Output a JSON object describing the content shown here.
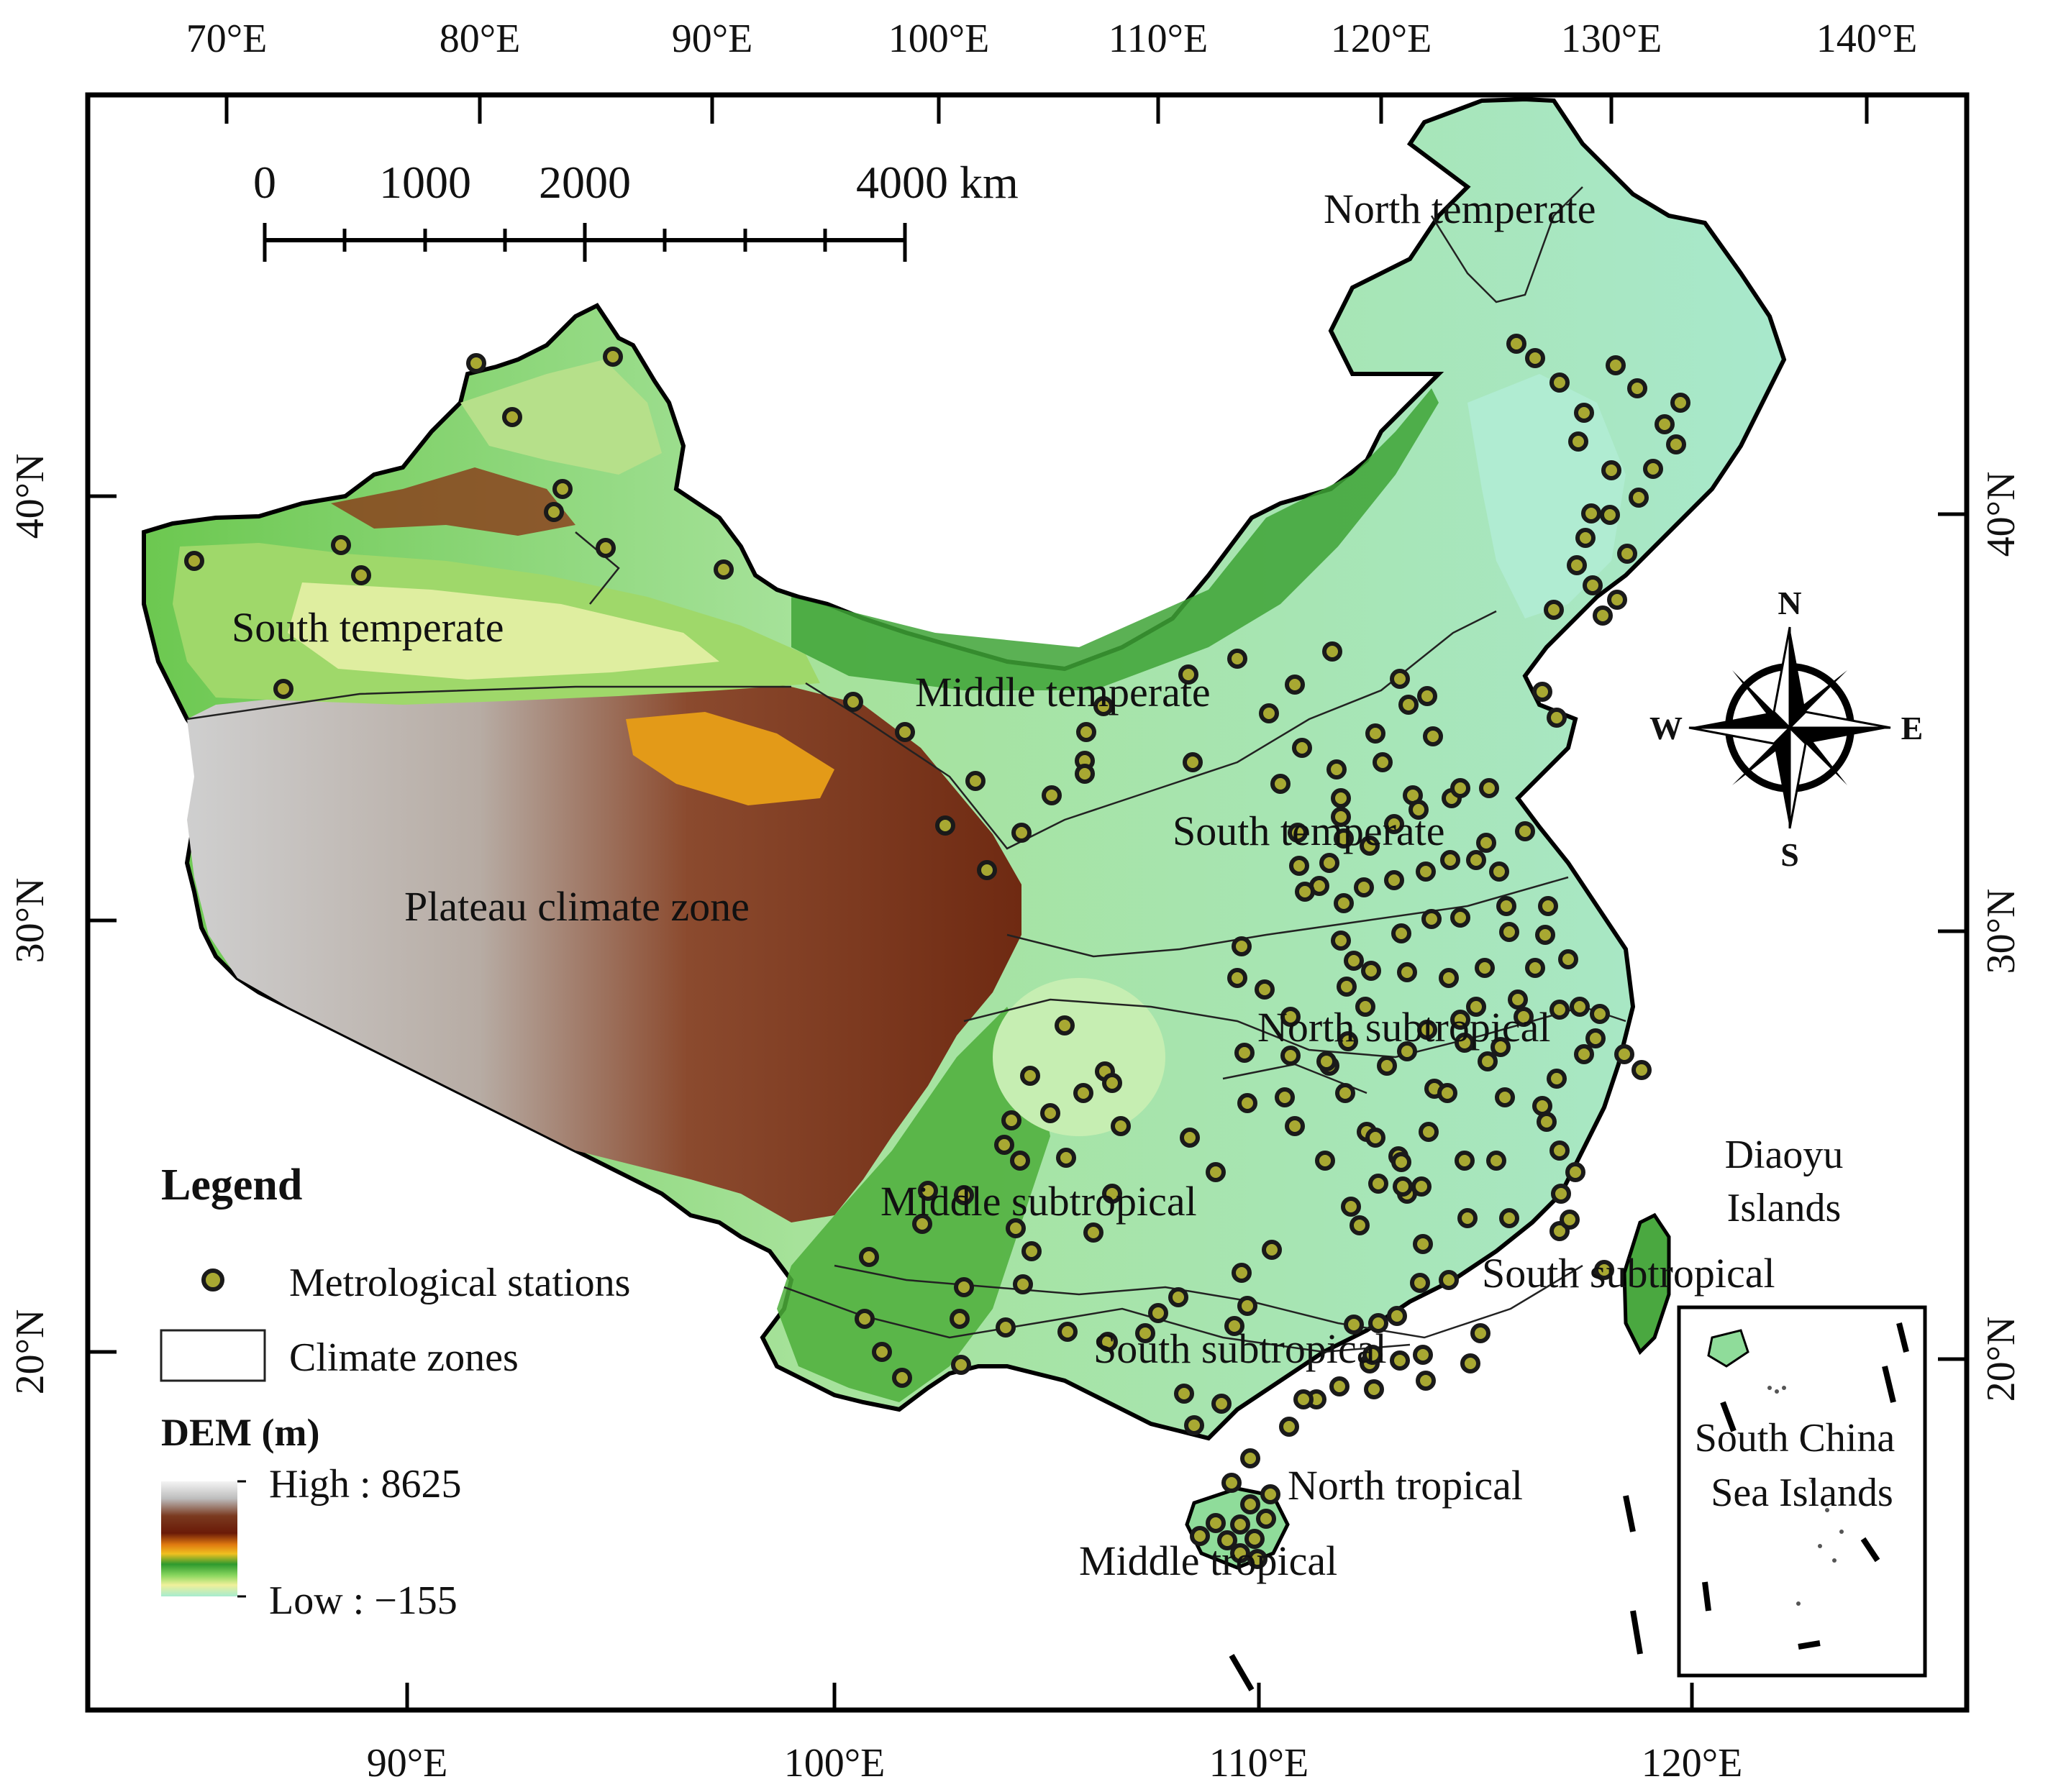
{
  "map": {
    "top_longitudes": [
      "70°E",
      "80°E",
      "90°E",
      "100°E",
      "110°E",
      "120°E",
      "130°E",
      "140°E"
    ],
    "bottom_longitudes": [
      "90°E",
      "100°E",
      "110°E",
      "120°E"
    ],
    "left_latitudes": [
      "40°N",
      "30°N",
      "20°N"
    ],
    "right_latitudes": [
      "40°N",
      "30°N",
      "20°N"
    ],
    "scale_bar": {
      "labels": [
        "0",
        "1000",
        "2000",
        "4000 km"
      ]
    },
    "zones": [
      {
        "label": "North temperate"
      },
      {
        "label": "South temperate"
      },
      {
        "label": "Middle temperate"
      },
      {
        "label": "South temperate"
      },
      {
        "label": "Plateau climate zone"
      },
      {
        "label": "North subtropical"
      },
      {
        "label": "Middle subtropical"
      },
      {
        "label": "South subtropical"
      },
      {
        "label": "South subtropical"
      },
      {
        "label": "North tropical"
      },
      {
        "label": "Middle tropical"
      }
    ],
    "islands": {
      "diaoyu_line1": "Diaoyu",
      "diaoyu_line2": "Islands",
      "scs_line1": "South China",
      "scs_line2": "Sea Islands"
    },
    "compass": {
      "n": "N",
      "s": "S",
      "e": "E",
      "w": "W"
    },
    "legend": {
      "title": "Legend",
      "stations": "Metrological stations",
      "zones": "Climate zones",
      "dem_title": "DEM (m)",
      "dem_high": "High : 8625",
      "dem_low": "Low : −155"
    },
    "colors": {
      "station_fill": "#a8a832",
      "station_stroke": "#1a1a1a",
      "lowland": "#a6e8c8",
      "plain": "#8ed870",
      "green": "#2f9a2a",
      "yellow": "#ece27a",
      "orange": "#e0a010",
      "brown": "#7a2d10",
      "snow": "#d8d8d8"
    }
  }
}
